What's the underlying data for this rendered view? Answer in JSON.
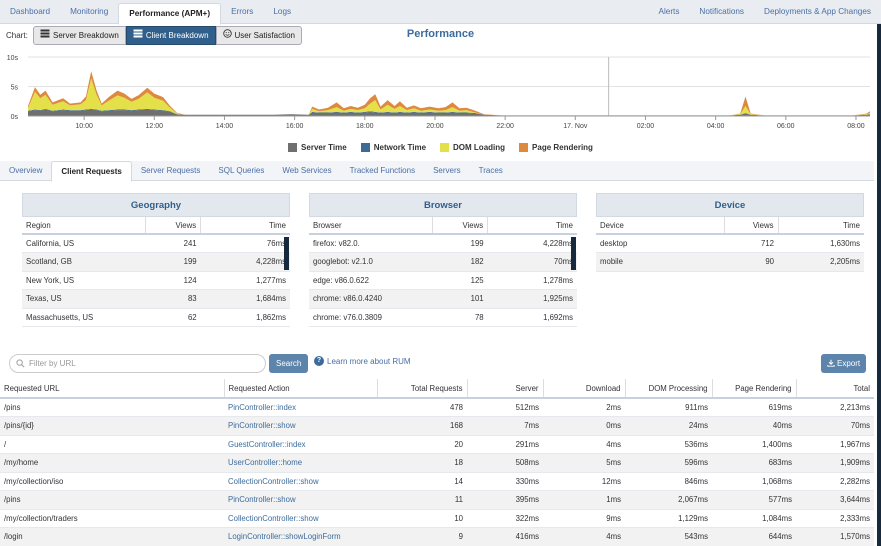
{
  "topnav": {
    "left": [
      {
        "label": "Dashboard",
        "active": false
      },
      {
        "label": "Monitoring",
        "active": false
      },
      {
        "label": "Performance (APM+)",
        "active": true
      },
      {
        "label": "Errors",
        "active": false
      },
      {
        "label": "Logs",
        "active": false
      }
    ],
    "right": [
      {
        "label": "Alerts"
      },
      {
        "label": "Notifications"
      },
      {
        "label": "Deployments & App Changes"
      }
    ]
  },
  "chartbar": {
    "label": "Chart:",
    "buttons": [
      {
        "label": "Server Breakdown",
        "icon": "layers-icon",
        "active": false
      },
      {
        "label": "Client Breakdown",
        "icon": "layers-icon",
        "active": true
      },
      {
        "label": "User Satisfaction",
        "icon": "smiley-icon",
        "active": false
      }
    ]
  },
  "chart_data": {
    "type": "area",
    "title": "Performance",
    "stacked": true,
    "ylim": [
      0,
      10
    ],
    "y_ticks": [
      "0s",
      "5s",
      "10s"
    ],
    "x_ticks": [
      "10:00",
      "12:00",
      "14:00",
      "16:00",
      "18:00",
      "20:00",
      "22:00",
      "17. Nov",
      "02:00",
      "04:00",
      "06:00",
      "08:00"
    ],
    "grid": true,
    "legend_position": "bottom",
    "series": [
      {
        "name": "Server Time",
        "color": "#6f6f6f"
      },
      {
        "name": "Network Time",
        "color": "#3d6b95"
      },
      {
        "name": "DOM Loading",
        "color": "#e3e04a"
      },
      {
        "name": "Page Rendering",
        "color": "#dd8a3f"
      }
    ],
    "points": [
      {
        "x": 0.0,
        "v": [
          0.8,
          0.1,
          0.5,
          0.3
        ]
      },
      {
        "x": 0.2,
        "v": [
          1.0,
          0.1,
          3.0,
          0.8
        ]
      },
      {
        "x": 0.35,
        "v": [
          0.9,
          0.1,
          2.0,
          0.6
        ]
      },
      {
        "x": 0.5,
        "v": [
          1.1,
          0.1,
          2.4,
          0.7
        ]
      },
      {
        "x": 0.7,
        "v": [
          0.8,
          0.1,
          1.0,
          0.4
        ]
      },
      {
        "x": 1.0,
        "v": [
          1.0,
          0.1,
          1.4,
          0.5
        ]
      },
      {
        "x": 1.2,
        "v": [
          0.9,
          0.1,
          0.8,
          0.3
        ]
      },
      {
        "x": 1.5,
        "v": [
          0.9,
          0.1,
          1.0,
          0.3
        ]
      },
      {
        "x": 1.65,
        "v": [
          1.0,
          0.1,
          1.6,
          0.6
        ]
      },
      {
        "x": 1.8,
        "v": [
          1.1,
          0.1,
          5.2,
          1.2
        ]
      },
      {
        "x": 1.95,
        "v": [
          1.0,
          0.1,
          2.6,
          0.7
        ]
      },
      {
        "x": 2.1,
        "v": [
          0.8,
          0.1,
          0.9,
          0.3
        ]
      },
      {
        "x": 2.3,
        "v": [
          0.9,
          0.1,
          1.6,
          0.6
        ]
      },
      {
        "x": 2.55,
        "v": [
          1.0,
          0.1,
          2.4,
          0.8
        ]
      },
      {
        "x": 2.75,
        "v": [
          1.0,
          0.1,
          2.0,
          0.7
        ]
      },
      {
        "x": 2.95,
        "v": [
          0.9,
          0.1,
          1.4,
          0.5
        ]
      },
      {
        "x": 3.15,
        "v": [
          1.0,
          0.1,
          1.8,
          0.6
        ]
      },
      {
        "x": 3.4,
        "v": [
          1.1,
          0.1,
          2.8,
          0.8
        ]
      },
      {
        "x": 3.6,
        "v": [
          1.0,
          0.1,
          2.0,
          0.7
        ]
      },
      {
        "x": 3.85,
        "v": [
          0.9,
          0.1,
          1.6,
          0.6
        ]
      },
      {
        "x": 4.05,
        "v": [
          0.7,
          0.1,
          0.6,
          0.3
        ]
      },
      {
        "x": 4.25,
        "v": [
          0.3,
          0.0,
          0.1,
          0.1
        ]
      },
      {
        "x": 4.5,
        "v": [
          0.2,
          0.0,
          0.0,
          0.0
        ]
      },
      {
        "x": 5.0,
        "v": [
          0.2,
          0.0,
          0.0,
          0.0
        ]
      },
      {
        "x": 5.5,
        "v": [
          0.2,
          0.0,
          0.0,
          0.0
        ]
      },
      {
        "x": 6.0,
        "v": [
          0.2,
          0.0,
          0.0,
          0.0
        ]
      },
      {
        "x": 6.5,
        "v": [
          0.2,
          0.0,
          0.0,
          0.0
        ]
      },
      {
        "x": 7.0,
        "v": [
          0.2,
          0.0,
          0.0,
          0.0
        ]
      },
      {
        "x": 7.5,
        "v": [
          0.3,
          0.0,
          0.0,
          0.0
        ]
      },
      {
        "x": 8.0,
        "v": [
          0.2,
          0.0,
          0.0,
          0.0
        ]
      },
      {
        "x": 8.1,
        "v": [
          0.6,
          0.1,
          0.5,
          0.4
        ]
      },
      {
        "x": 8.3,
        "v": [
          0.5,
          0.1,
          0.2,
          0.3
        ]
      },
      {
        "x": 8.55,
        "v": [
          0.5,
          0.1,
          0.4,
          0.4
        ]
      },
      {
        "x": 8.8,
        "v": [
          0.6,
          0.1,
          0.8,
          0.8
        ]
      },
      {
        "x": 9.0,
        "v": [
          0.5,
          0.1,
          0.3,
          0.4
        ]
      },
      {
        "x": 9.2,
        "v": [
          0.6,
          0.1,
          0.5,
          0.5
        ]
      },
      {
        "x": 9.4,
        "v": [
          0.5,
          0.1,
          0.4,
          0.4
        ]
      },
      {
        "x": 9.6,
        "v": [
          0.6,
          0.1,
          0.6,
          0.6
        ]
      },
      {
        "x": 9.75,
        "v": [
          0.7,
          0.1,
          1.3,
          0.9
        ]
      },
      {
        "x": 9.9,
        "v": [
          0.6,
          0.1,
          2.0,
          1.0
        ]
      },
      {
        "x": 10.05,
        "v": [
          0.5,
          0.1,
          0.5,
          0.5
        ]
      },
      {
        "x": 10.25,
        "v": [
          0.6,
          0.1,
          1.2,
          0.8
        ]
      },
      {
        "x": 10.45,
        "v": [
          0.5,
          0.1,
          0.6,
          0.5
        ]
      },
      {
        "x": 10.6,
        "v": [
          0.6,
          0.1,
          1.0,
          0.8
        ]
      },
      {
        "x": 10.8,
        "v": [
          0.5,
          0.1,
          0.4,
          0.4
        ]
      },
      {
        "x": 11.0,
        "v": [
          0.6,
          0.1,
          0.6,
          0.5
        ]
      },
      {
        "x": 11.2,
        "v": [
          0.5,
          0.1,
          0.3,
          0.4
        ]
      },
      {
        "x": 11.45,
        "v": [
          0.6,
          0.1,
          0.4,
          0.5
        ]
      },
      {
        "x": 11.7,
        "v": [
          0.5,
          0.1,
          0.3,
          0.4
        ]
      },
      {
        "x": 11.9,
        "v": [
          0.5,
          0.1,
          0.4,
          0.5
        ]
      },
      {
        "x": 12.1,
        "v": [
          0.6,
          0.1,
          0.8,
          0.8
        ]
      },
      {
        "x": 12.3,
        "v": [
          0.5,
          0.1,
          0.3,
          0.4
        ]
      },
      {
        "x": 12.5,
        "v": [
          0.5,
          0.1,
          0.4,
          0.4
        ]
      },
      {
        "x": 12.75,
        "v": [
          0.4,
          0.1,
          0.1,
          0.3
        ]
      },
      {
        "x": 13.0,
        "v": [
          0.2,
          0.0,
          0.0,
          0.1
        ]
      },
      {
        "x": 13.5,
        "v": [
          0.1,
          0.0,
          0.0,
          0.0
        ]
      },
      {
        "x": 14.0,
        "v": [
          0.1,
          0.0,
          0.0,
          0.0
        ]
      },
      {
        "x": 14.5,
        "v": [
          0.1,
          0.0,
          0.0,
          0.0
        ]
      },
      {
        "x": 15.0,
        "v": [
          0.1,
          0.0,
          0.0,
          0.0
        ]
      },
      {
        "x": 15.5,
        "v": [
          0.1,
          0.0,
          0.0,
          0.0
        ]
      },
      {
        "x": 16.0,
        "v": [
          0.1,
          0.0,
          0.0,
          0.0
        ]
      },
      {
        "x": 16.5,
        "v": [
          0.1,
          0.0,
          0.0,
          0.0
        ]
      },
      {
        "x": 17.0,
        "v": [
          0.1,
          0.0,
          0.0,
          0.0
        ]
      },
      {
        "x": 17.5,
        "v": [
          0.1,
          0.0,
          0.0,
          0.0
        ]
      },
      {
        "x": 18.0,
        "v": [
          0.1,
          0.0,
          0.0,
          0.0
        ]
      },
      {
        "x": 18.5,
        "v": [
          0.1,
          0.0,
          0.0,
          0.0
        ]
      },
      {
        "x": 19.0,
        "v": [
          0.1,
          0.0,
          0.0,
          0.0
        ]
      },
      {
        "x": 19.5,
        "v": [
          0.1,
          0.0,
          0.0,
          0.0
        ]
      },
      {
        "x": 20.0,
        "v": [
          0.1,
          0.0,
          0.0,
          0.0
        ]
      },
      {
        "x": 20.3,
        "v": [
          0.2,
          0.0,
          0.1,
          0.1
        ]
      },
      {
        "x": 20.45,
        "v": [
          0.4,
          0.1,
          1.2,
          1.6
        ]
      },
      {
        "x": 20.6,
        "v": [
          0.2,
          0.0,
          0.1,
          0.1
        ]
      },
      {
        "x": 21.0,
        "v": [
          0.1,
          0.0,
          0.0,
          0.0
        ]
      },
      {
        "x": 21.5,
        "v": [
          0.1,
          0.0,
          0.0,
          0.0
        ]
      },
      {
        "x": 22.0,
        "v": [
          0.1,
          0.0,
          0.0,
          0.0
        ]
      },
      {
        "x": 22.5,
        "v": [
          0.1,
          0.0,
          0.0,
          0.0
        ]
      },
      {
        "x": 23.0,
        "v": [
          0.1,
          0.0,
          0.0,
          0.0
        ]
      },
      {
        "x": 23.5,
        "v": [
          0.1,
          0.0,
          0.0,
          0.0
        ]
      },
      {
        "x": 23.9,
        "v": [
          0.2,
          0.0,
          0.1,
          0.1
        ]
      },
      {
        "x": 24.0,
        "v": [
          0.3,
          0.0,
          0.2,
          0.3
        ]
      }
    ],
    "marker_x": 16.55
  },
  "subtabs": [
    {
      "label": "Overview",
      "active": false
    },
    {
      "label": "Client Requests",
      "active": true
    },
    {
      "label": "Server Requests",
      "active": false
    },
    {
      "label": "SQL Queries",
      "active": false
    },
    {
      "label": "Web Services",
      "active": false
    },
    {
      "label": "Tracked Functions",
      "active": false
    },
    {
      "label": "Servers",
      "active": false
    },
    {
      "label": "Traces",
      "active": false
    }
  ],
  "geography": {
    "title": "Geography",
    "cols": [
      "Region",
      "Views",
      "Time"
    ],
    "rows": [
      [
        "California, US",
        "241",
        "76ms"
      ],
      [
        "Scotland, GB",
        "199",
        "4,228ms"
      ],
      [
        "New York, US",
        "124",
        "1,277ms"
      ],
      [
        "Texas, US",
        "83",
        "1,684ms"
      ],
      [
        "Massachusetts, US",
        "62",
        "1,862ms"
      ]
    ]
  },
  "browser": {
    "title": "Browser",
    "cols": [
      "Browser",
      "Views",
      "Time"
    ],
    "rows": [
      [
        "firefox: v82.0.",
        "199",
        "4,228ms"
      ],
      [
        "googlebot: v2.1.0",
        "182",
        "70ms"
      ],
      [
        "edge: v86.0.622",
        "125",
        "1,278ms"
      ],
      [
        "chrome: v86.0.4240",
        "101",
        "1,925ms"
      ],
      [
        "chrome: v76.0.3809",
        "78",
        "1,692ms"
      ]
    ]
  },
  "device": {
    "title": "Device",
    "cols": [
      "Device",
      "Views",
      "Time"
    ],
    "rows": [
      [
        "desktop",
        "712",
        "1,630ms"
      ],
      [
        "mobile",
        "90",
        "2,205ms"
      ]
    ]
  },
  "filter": {
    "placeholder": "Filter by URL",
    "search_label": "Search",
    "rum_link": "Learn more about RUM",
    "export_label": "Export"
  },
  "requests": {
    "cols": [
      "Requested URL",
      "Requested Action",
      "Total Requests",
      "Server",
      "Download",
      "DOM Processing",
      "Page Rendering",
      "Total"
    ],
    "rows": [
      [
        "/pins",
        "PinController::index",
        "478",
        "512ms",
        "2ms",
        "911ms",
        "619ms",
        "2,213ms"
      ],
      [
        "/pins/{id}",
        "PinController::show",
        "168",
        "7ms",
        "0ms",
        "24ms",
        "40ms",
        "70ms"
      ],
      [
        "/",
        "GuestController::index",
        "20",
        "291ms",
        "4ms",
        "536ms",
        "1,400ms",
        "1,967ms"
      ],
      [
        "/my/home",
        "UserController::home",
        "18",
        "508ms",
        "5ms",
        "596ms",
        "683ms",
        "1,909ms"
      ],
      [
        "/my/collection/iso",
        "CollectionController::show",
        "14",
        "330ms",
        "12ms",
        "846ms",
        "1,068ms",
        "2,282ms"
      ],
      [
        "/pins",
        "PinController::show",
        "11",
        "395ms",
        "1ms",
        "2,067ms",
        "577ms",
        "3,644ms"
      ],
      [
        "/my/collection/traders",
        "CollectionController::show",
        "10",
        "322ms",
        "9ms",
        "1,129ms",
        "1,084ms",
        "2,333ms"
      ],
      [
        "/login",
        "LoginController::showLoginForm",
        "9",
        "416ms",
        "4ms",
        "543ms",
        "644ms",
        "1,570ms"
      ]
    ]
  }
}
